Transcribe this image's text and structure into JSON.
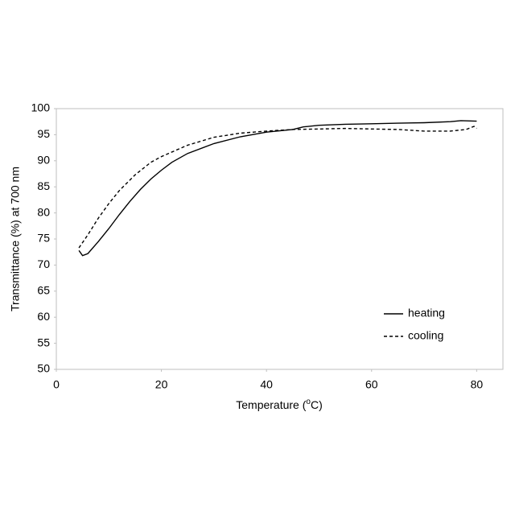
{
  "chart_data": {
    "type": "line",
    "x_label": {
      "before": "Temperature (",
      "sup": "o",
      "after": "C)"
    },
    "y_label": "Transmittance (%) at 700 nm",
    "xlim": [
      0,
      85
    ],
    "xticks": [
      0,
      20,
      40,
      60,
      80
    ],
    "ylim": [
      50,
      100
    ],
    "yticks": [
      50,
      55,
      60,
      65,
      70,
      75,
      80,
      85,
      90,
      95,
      100
    ],
    "grid": false,
    "legend": "lower right",
    "series": [
      {
        "name": "heating",
        "color": "#000000",
        "style": "solid",
        "x": [
          4.3,
          5,
          6,
          8,
          10,
          12,
          14,
          16,
          18,
          20,
          22,
          25,
          30,
          35,
          40,
          45,
          47,
          50,
          55,
          60,
          65,
          70,
          75,
          77,
          80
        ],
        "values": [
          72.8,
          71.8,
          72.2,
          74.5,
          77,
          79.7,
          82.2,
          84.5,
          86.5,
          88.2,
          89.7,
          91.4,
          93.3,
          94.6,
          95.5,
          96.0,
          96.5,
          96.8,
          97.0,
          97.1,
          97.2,
          97.3,
          97.5,
          97.7,
          97.6
        ]
      },
      {
        "name": "cooling",
        "color": "#000000",
        "style": "dashed",
        "x": [
          4.3,
          6,
          8,
          10,
          12,
          15,
          18,
          20,
          25,
          30,
          35,
          40,
          45,
          50,
          55,
          60,
          65,
          70,
          75,
          78,
          79.5,
          80
        ],
        "values": [
          73.3,
          75.8,
          79,
          81.8,
          84.3,
          87.3,
          89.7,
          90.8,
          93.0,
          94.5,
          95.3,
          95.7,
          96.0,
          96.1,
          96.2,
          96.1,
          96.0,
          95.7,
          95.7,
          96.0,
          96.6,
          96.2
        ]
      }
    ]
  }
}
